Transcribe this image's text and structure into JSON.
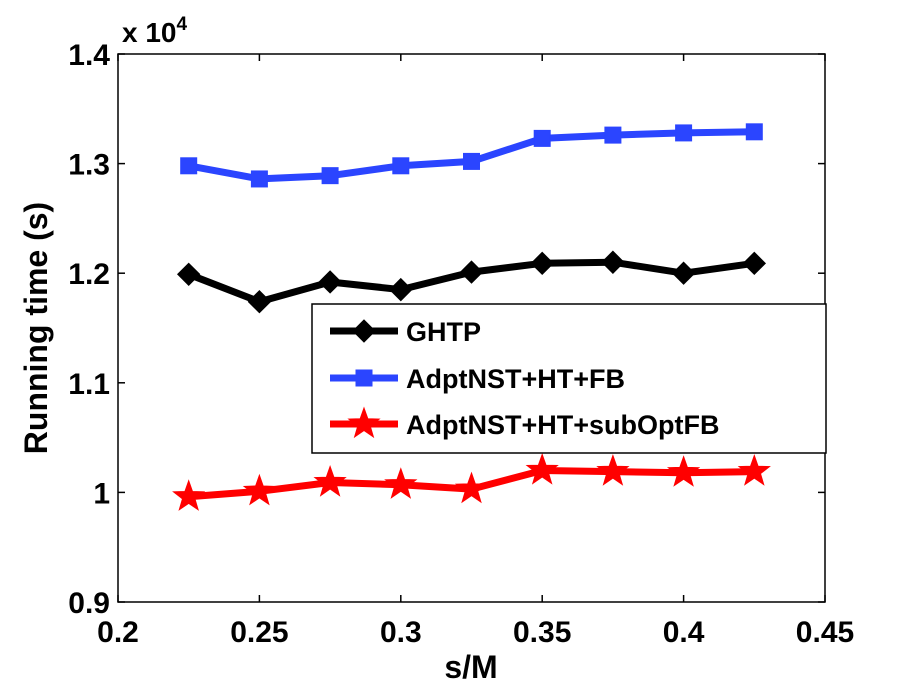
{
  "chart_data": {
    "type": "line",
    "title": "",
    "xlabel": "s/M",
    "ylabel": "Running time (s)",
    "xlim": [
      0.2,
      0.45
    ],
    "ylim": [
      9000,
      14000
    ],
    "x_ticks": [
      0.2,
      0.25,
      0.3,
      0.35,
      0.4,
      0.45
    ],
    "x_tick_labels": [
      "0.2",
      "0.25",
      "0.3",
      "0.35",
      "0.4",
      "0.45"
    ],
    "y_ticks": [
      9000,
      10000,
      11000,
      12000,
      13000,
      14000
    ],
    "y_tick_labels": [
      "0.9",
      "1",
      "1.1",
      "1.2",
      "1.3",
      "1.4"
    ],
    "y_multiplier": {
      "base": "x 10",
      "exponent": "4"
    },
    "grid": false,
    "legend_position": "center-right",
    "x": [
      0.225,
      0.25,
      0.275,
      0.3,
      0.325,
      0.35,
      0.375,
      0.4,
      0.425
    ],
    "series": [
      {
        "name": "GHTP",
        "color": "#000000",
        "marker": "diamond",
        "values": [
          11990,
          11740,
          11920,
          11850,
          12010,
          12090,
          12100,
          12000,
          12090
        ]
      },
      {
        "name": "AdptNST+HT+FB",
        "color": "#2b45ff",
        "marker": "square",
        "values": [
          12980,
          12860,
          12890,
          12980,
          13020,
          13230,
          13260,
          13280,
          13290
        ]
      },
      {
        "name": "AdptNST+HT+subOptFB",
        "color": "#ff0000",
        "marker": "star",
        "values": [
          9960,
          10010,
          10090,
          10070,
          10030,
          10200,
          10190,
          10180,
          10190
        ]
      }
    ]
  }
}
